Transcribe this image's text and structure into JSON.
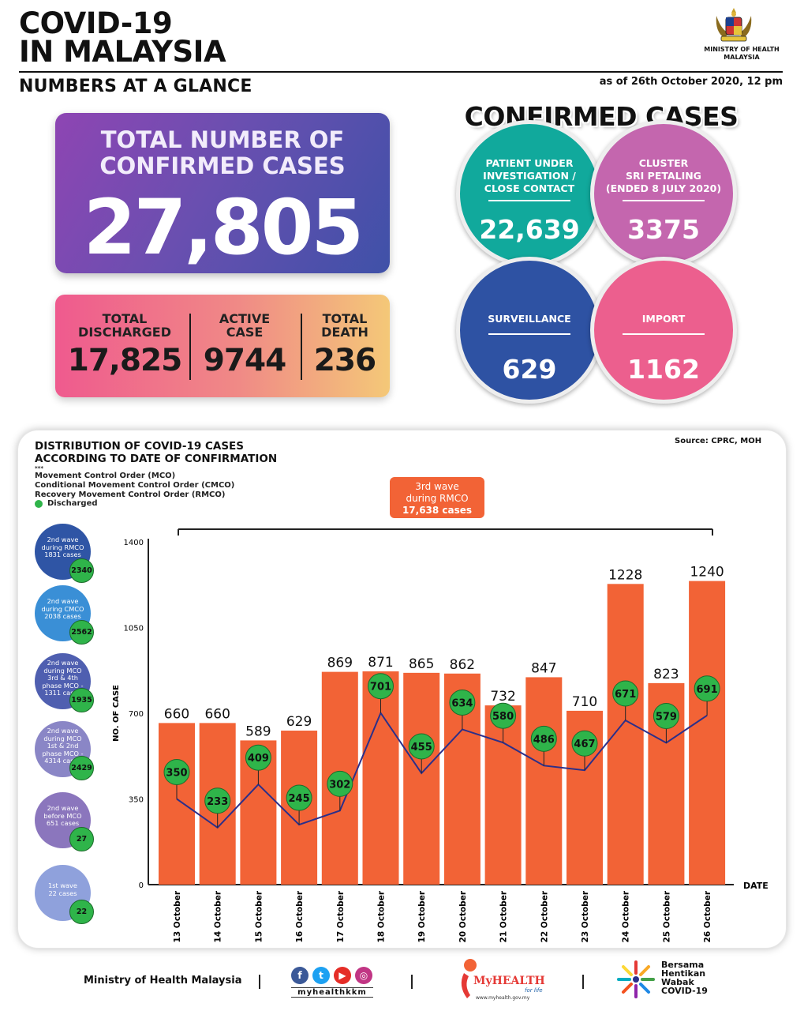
{
  "header": {
    "title_line1": "COVID-19",
    "title_line2": "IN MALAYSIA",
    "ministry_line1": "MINISTRY OF HEALTH",
    "ministry_line2": "MALAYSIA",
    "subtitle": "NUMBERS AT A GLANCE",
    "as_of": "as of 26th October 2020, 12 pm"
  },
  "total": {
    "label_line1": "TOTAL NUMBER OF",
    "label_line2": "CONFIRMED CASES",
    "value": "27,805"
  },
  "stats": {
    "discharged_label_1": "TOTAL",
    "discharged_label_2": "DISCHARGED",
    "discharged_value": "17,825",
    "active_label_1": "ACTIVE",
    "active_label_2": "CASE",
    "active_value": "9744",
    "death_label_1": "TOTAL",
    "death_label_2": "DEATH",
    "death_value": "236"
  },
  "confirmed": {
    "title": "CONFIRMED CASES",
    "pui_label_1": "PATIENT UNDER",
    "pui_label_2": "INVESTIGATION /",
    "pui_label_3": "CLOSE CONTACT",
    "pui_value": "22,639",
    "cluster_label_1": "CLUSTER",
    "cluster_label_2": "SRI PETALING",
    "cluster_label_3": "(ENDED 8 JULY 2020)",
    "cluster_value": "3375",
    "surveillance_label": "SURVEILLANCE",
    "surveillance_value": "629",
    "import_label": "IMPORT",
    "import_value": "1162",
    "colors": {
      "pui": "#11a99c",
      "cluster": "#c466ae",
      "surveillance": "#2e52a3",
      "import": "#ec5f8e"
    }
  },
  "distribution": {
    "title_line1": "DISTRIBUTION OF COVID-19 CASES",
    "title_line2": "ACCORDING TO DATE OF CONFIRMATION",
    "source": "Source: CPRC, MOH",
    "legend_marker": "***",
    "legend_1": "Movement Control Order (MCO)",
    "legend_2": "Conditional Movement Control Order (CMCO)",
    "legend_3": "Recovery Movement Control Order (RMCO)",
    "legend_4": "Discharged",
    "waves": [
      {
        "l1": "2nd wave",
        "l2": "during RMCO",
        "l3": "1831 cases",
        "l4": "",
        "l5": "",
        "badge": "2340",
        "color": "#2f55a5"
      },
      {
        "l1": "2nd wave",
        "l2": "during CMCO",
        "l3": "2038 cases",
        "l4": "",
        "l5": "",
        "badge": "2562",
        "color": "#3a8fd6"
      },
      {
        "l1": "2nd wave",
        "l2": "during MCO",
        "l3": "3rd & 4th",
        "l4": "phase MCO -",
        "l5": "1311 cases",
        "badge": "1935",
        "color": "#4f5fb0"
      },
      {
        "l1": "2nd wave",
        "l2": "during MCO",
        "l3": "1st & 2nd",
        "l4": "phase MCO -",
        "l5": "4314 cases",
        "badge": "2429",
        "color": "#8a86c6"
      },
      {
        "l1": "2nd wave",
        "l2": "before MCO",
        "l3": "651 cases",
        "l4": "",
        "l5": "",
        "badge": "27",
        "color": "#8b76bd"
      },
      {
        "l1": "1st wave",
        "l2": "22 cases",
        "l3": "",
        "l4": "",
        "l5": "",
        "badge": "22",
        "color": "#8fa1dc"
      }
    ]
  },
  "chart_data": {
    "type": "bar",
    "categories": [
      "13 October",
      "14 October",
      "15 October",
      "16 October",
      "17 October",
      "18 October",
      "19 October",
      "20 October",
      "21 October",
      "22 October",
      "23 October",
      "24 October",
      "25 October",
      "26 October"
    ],
    "series": [
      {
        "values": [
          660,
          660,
          589,
          629,
          869,
          871,
          865,
          862,
          732,
          847,
          710,
          1228,
          823,
          1240
        ],
        "color": "#f26336"
      },
      {
        "name": "Discharged",
        "type": "line",
        "values": [
          350,
          233,
          409,
          245,
          302,
          701,
          455,
          634,
          580,
          486,
          467,
          671,
          579,
          691
        ],
        "color": "#2b2f8a",
        "marker_color": "#2fb44a"
      }
    ],
    "ylabel": "NO. OF CASE",
    "xlabel": "DATE",
    "ylim": [
      0,
      1400
    ],
    "yticks": [
      0,
      350,
      700,
      1050,
      1400
    ],
    "annotation": {
      "line1": "3rd wave",
      "line2": "during RMCO",
      "line3": "17,638 cases",
      "color": "#f26336"
    }
  },
  "footer": {
    "ministry": "Ministry of Health Malaysia",
    "social_handle": "myhealthkkm",
    "myhealth_logo": "MyHEALTH",
    "myhealth_tagline": "for life",
    "myhealth_url": "www.myhealth.gov.my",
    "campaign_1": "Bersama",
    "campaign_2": "Hentikan",
    "campaign_3": "Wabak",
    "campaign_4": "COVID-19"
  }
}
